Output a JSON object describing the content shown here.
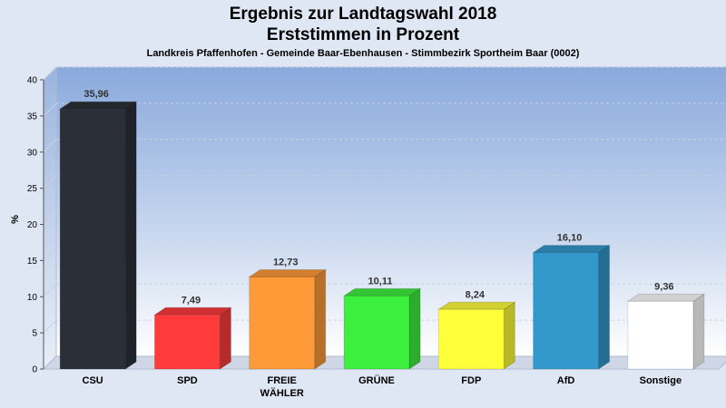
{
  "chart_data": {
    "type": "bar",
    "title": "Ergebnis zur Landtagswahl 2018",
    "title2": "Erststimmen in Prozent",
    "subtitle": "Landkreis Pfaffenhofen - Gemeinde Baar-Ebenhausen - Stimmbezirk Sportheim Baar (0002)",
    "ylabel": "%",
    "ylim": [
      0,
      40
    ],
    "yticks": [
      0,
      5,
      10,
      15,
      20,
      25,
      30,
      35,
      40
    ],
    "categories": [
      "CSU",
      "SPD",
      "FREIE\nWÄHLER",
      "GRÜNE",
      "FDP",
      "AfD",
      "Sonstige"
    ],
    "values": [
      35.96,
      7.49,
      12.73,
      10.11,
      8.24,
      16.1,
      9.36
    ],
    "value_labels": [
      "35,96",
      "7,49",
      "12,73",
      "10,11",
      "8,24",
      "16,10",
      "9,36"
    ],
    "colors": [
      "#2b2f38",
      "#ff3a3a",
      "#ff9a38",
      "#3ef03e",
      "#ffff3a",
      "#3399cc",
      "#ffffff"
    ]
  }
}
